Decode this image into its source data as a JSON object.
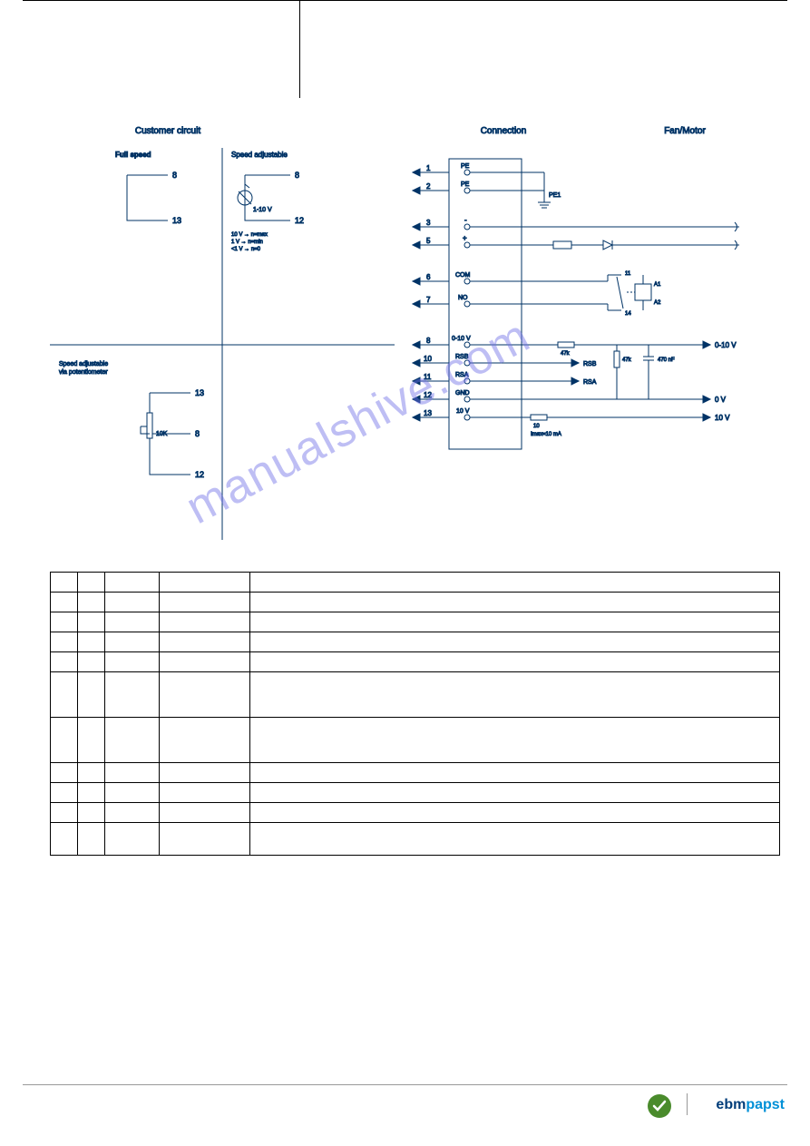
{
  "diagram": {
    "headers": {
      "customer_circuit": "Customer circuit",
      "connection": "Connection",
      "fan_motor": "Fan/Motor"
    },
    "customer": {
      "full_speed": "Full speed",
      "speed_adjustable": "Speed adjustable",
      "speed_adjustable_via_pot": "Speed adjustable\nvia potentiometer",
      "pot_range": "1-10 V",
      "pot_notes": "10 V → n=max\n1 V → n=min\n<1 V → n=0",
      "pot_10k": "10K",
      "pins": {
        "p8": "8",
        "p12": "12",
        "p13": "13"
      }
    },
    "connection_pins": [
      {
        "num": "1",
        "label": "PE"
      },
      {
        "num": "2",
        "label": "PE"
      },
      {
        "num": "3",
        "label": "-"
      },
      {
        "num": "5",
        "label": "+"
      },
      {
        "num": "6",
        "label": "COM"
      },
      {
        "num": "7",
        "label": "NO"
      },
      {
        "num": "8",
        "label": "0-10 V"
      },
      {
        "num": "10",
        "label": "RSB"
      },
      {
        "num": "11",
        "label": "RSA"
      },
      {
        "num": "12",
        "label": "GND"
      },
      {
        "num": "13",
        "label": "10 V"
      }
    ],
    "fan_labels": {
      "pe1": "PE1",
      "r47k": "47k",
      "rsb": "RSB",
      "rsa": "RSA",
      "c470nf": "470 nF",
      "r10": "10",
      "imax": "Imax=10 mA",
      "out_010v": "0-10 V",
      "out_0v": "0 V",
      "out_10v": "10 V",
      "relay": {
        "t11": "11",
        "t14": "14",
        "a1": "A1",
        "a2": "A2"
      }
    },
    "colors": {
      "line": "#003366",
      "watermark": "rgba(110,110,230,0.45)",
      "text": "#000"
    }
  },
  "watermark": "manualshive.com",
  "table": {
    "rows": [
      {
        "h": "norm"
      },
      {
        "h": "norm"
      },
      {
        "h": "norm"
      },
      {
        "h": "norm"
      },
      {
        "h": "norm"
      },
      {
        "h": "tall"
      },
      {
        "h": "tall"
      },
      {
        "h": "norm"
      },
      {
        "h": "norm"
      },
      {
        "h": "norm"
      },
      {
        "h": "med"
      }
    ]
  },
  "footer": {
    "brand_part1": "ebm",
    "brand_part2": "papst"
  }
}
